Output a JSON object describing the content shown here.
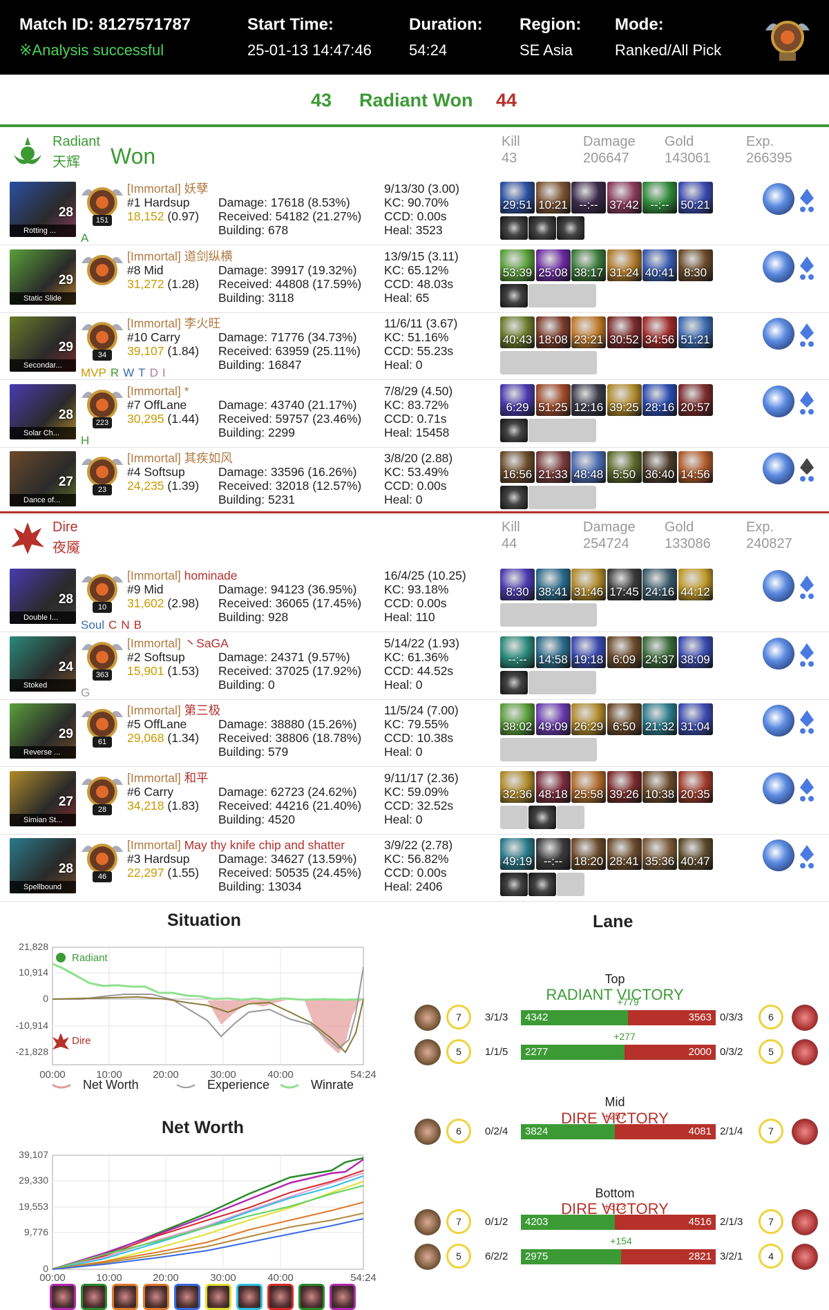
{
  "header": {
    "match_label": "Match ID: 8127571787",
    "status": "※Analysis successful",
    "start_label": "Start Time:",
    "start_value": "25-01-13 14:47:46",
    "duration_label": "Duration:",
    "duration_value": "54:24",
    "region_label": "Region:",
    "region_value": "SE Asia",
    "mode_label": "Mode:",
    "mode_value": "Ranked/All Pick"
  },
  "score": {
    "radiant_kills": "43",
    "result": "Radiant Won",
    "dire_kills": "44"
  },
  "stat_labels": {
    "kill": "Kill",
    "damage": "Damage",
    "gold": "Gold",
    "exp": "Exp."
  },
  "radiant": {
    "name": "Radiant",
    "name_cn": "天辉",
    "won": "Won",
    "kill": "43",
    "damage": "206647",
    "gold": "143061",
    "exp": "266395",
    "players": [
      {
        "level": "28",
        "facet": "Rotting ...",
        "rank_num": "151",
        "tags": [
          "A"
        ],
        "rank": "[Immortal] ",
        "name": "妖孽",
        "pos": "#1 Hardsup",
        "nw": "18,152",
        "nwr": " (0.97)",
        "dmg": "Damage: 17618 (8.53%)",
        "recv": "Received: 54182 (21.27%)",
        "bld": "Building: 678",
        "kda": "9/13/30 (3.00)",
        "kc": "KC: 90.70%",
        "ccd": "CCD: 0.00s",
        "heal": "Heal: 3523",
        "items": [
          "29:51",
          "10:21",
          "--:--",
          "37:42",
          "--:--",
          "50:21"
        ],
        "small": [
          1,
          1,
          1
        ],
        "colors": [
          "#2a4fa0",
          "#7a5230",
          "#3a2a4a",
          "#8a3a5a",
          "#2f8a3a",
          "#3a4ab0"
        ]
      },
      {
        "level": "29",
        "facet": "Static Slide",
        "rank_num": "",
        "tags": [],
        "rank": "[Immortal] ",
        "name": "道剑纵横",
        "pos": "#8 Mid",
        "nw": "31,272",
        "nwr": " (1.28)",
        "dmg": "Damage: 39917 (19.32%)",
        "recv": "Received: 44808 (17.59%)",
        "bld": "Building: 3118",
        "kda": "13/9/15 (3.11)",
        "kc": "KC: 65.12%",
        "ccd": "CCD: 48.03s",
        "heal": "Heal: 65",
        "items": [
          "53:39",
          "25:08",
          "38:17",
          "31:24",
          "40:41",
          "8:30"
        ],
        "small": [
          1,
          0,
          0
        ],
        "colors": [
          "#5aa03a",
          "#6a2aa0",
          "#3a7a3a",
          "#b07a2a",
          "#3a5ab0",
          "#6a4a2a"
        ]
      },
      {
        "level": "29",
        "facet": "Secondar...",
        "rank_num": "34",
        "tags": [
          "MVP",
          "R",
          "W",
          "T",
          "D",
          "I"
        ],
        "rank": "[Immortal] ",
        "name": "李火旺",
        "pos": "#10 Carry",
        "nw": "39,107",
        "nwr": " (1.84)",
        "dmg": "Damage: 71776 (34.73%)",
        "recv": "Received: 63959 (25.11%)",
        "bld": "Building: 16847",
        "kda": "11/6/11 (3.67)",
        "kc": "KC: 51.16%",
        "ccd": "CCD: 55.23s",
        "heal": "Heal: 0",
        "items": [
          "40:43",
          "18:08",
          "23:21",
          "30:52",
          "34:56",
          "51:21"
        ],
        "small": [
          0,
          0,
          0
        ],
        "colors": [
          "#6a7a2a",
          "#7a3a2a",
          "#c07a2a",
          "#7a2a2a",
          "#a02a2a",
          "#3a6ab0"
        ]
      },
      {
        "level": "28",
        "facet": "Solar Ch...",
        "rank_num": "223",
        "tags": [
          "H"
        ],
        "rank": "[Immortal] ",
        "name": "*",
        "pos": "#7 OffLane",
        "nw": "30,295",
        "nwr": " (1.44)",
        "dmg": "Damage: 43740 (21.17%)",
        "recv": "Received: 59757 (23.46%)",
        "bld": "Building: 2299",
        "kda": "7/8/29 (4.50)",
        "kc": "KC: 83.72%",
        "ccd": "CCD: 0.71s",
        "heal": "Heal: 15458",
        "items": [
          "6:29",
          "51:25",
          "12:16",
          "39:25",
          "28:16",
          "20:57"
        ],
        "small": [
          1,
          0,
          0
        ],
        "colors": [
          "#4a3ab0",
          "#a04a2a",
          "#3a3a4a",
          "#b08a2a",
          "#2a4ab0",
          "#7a2a2a"
        ]
      },
      {
        "level": "27",
        "facet": "Dance of...",
        "rank_num": "23",
        "tags": [],
        "rank": "[Immortal] ",
        "name": "其疾如风",
        "pos": "#4 Softsup",
        "nw": "24,235",
        "nwr": " (1.39)",
        "dmg": "Damage: 33596 (16.26%)",
        "recv": "Received: 32018 (12.57%)",
        "bld": "Building: 5231",
        "kda": "3/8/20 (2.88)",
        "kc": "KC: 53.49%",
        "ccd": "CCD: 0.00s",
        "heal": "Heal: 0",
        "items": [
          "16:56",
          "21:33",
          "48:48",
          "5:50",
          "36:40",
          "14:56"
        ],
        "small": [
          1,
          0,
          0
        ],
        "colors": [
          "#6a4a2a",
          "#7a3a3a",
          "#4a6ab0",
          "#5a6a2a",
          "#4a3a2a",
          "#b05a2a"
        ]
      }
    ]
  },
  "dire": {
    "name": "Dire",
    "name_cn": "夜魇",
    "kill": "44",
    "damage": "254724",
    "gold": "133086",
    "exp": "240827",
    "players": [
      {
        "level": "28",
        "facet": "Double I...",
        "rank_num": "10",
        "tags": [
          "Soul",
          "C",
          "N",
          "B"
        ],
        "rank": "[Immortal] ",
        "name": "hominade",
        "pos": "#9 Mid",
        "nw": "31,602",
        "nwr": " (2.98)",
        "dmg": "Damage: 94123 (36.95%)",
        "recv": "Received: 36065 (17.45%)",
        "bld": "Building: 928",
        "kda": "16/4/25 (10.25)",
        "kc": "KC: 93.18%",
        "ccd": "CCD: 0.00s",
        "heal": "Heal: 110",
        "items": [
          "8:30",
          "38:41",
          "31:46",
          "17:45",
          "24:16",
          "44:12"
        ],
        "small": [
          0,
          0,
          0
        ],
        "colors": [
          "#4a3ab0",
          "#2a6a8a",
          "#b08a2a",
          "#3a3a3a",
          "#3a5a6a",
          "#c09a2a"
        ]
      },
      {
        "level": "24",
        "facet": "Stoked",
        "rank_num": "363",
        "tags": [
          "G"
        ],
        "rank": "[Immortal] ",
        "name": "丶SaGA",
        "pos": "#2 Softsup",
        "nw": "15,901",
        "nwr": " (1.53)",
        "dmg": "Damage: 24371 (9.57%)",
        "recv": "Received: 37025 (17.92%)",
        "bld": "Building: 0",
        "kda": "5/14/22 (1.93)",
        "kc": "KC: 61.36%",
        "ccd": "CCD: 44.52s",
        "heal": "Heal: 0",
        "items": [
          "--:--",
          "14:58",
          "19:18",
          "6:09",
          "24:37",
          "38:09"
        ],
        "small": [
          1,
          0,
          0
        ],
        "colors": [
          "#2a8a7a",
          "#2a6a8a",
          "#3a4ab0",
          "#6a4a2a",
          "#3a6a3a",
          "#3a4ab0"
        ]
      },
      {
        "level": "29",
        "facet": "Reverse ...",
        "rank_num": "61",
        "tags": [],
        "rank": "[Immortal] ",
        "name": "第三极",
        "pos": "#5 OffLane",
        "nw": "29,068",
        "nwr": " (1.34)",
        "dmg": "Damage: 38880 (15.26%)",
        "recv": "Received: 38806 (18.78%)",
        "bld": "Building: 579",
        "kda": "11/5/24 (7.00)",
        "kc": "KC: 79.55%",
        "ccd": "CCD: 10.38s",
        "heal": "Heal: 0",
        "items": [
          "38:02",
          "49:09",
          "26:29",
          "6:50",
          "21:32",
          "31:04"
        ],
        "small": [
          0,
          0,
          0
        ],
        "colors": [
          "#5aa03a",
          "#6a3ab0",
          "#b08a2a",
          "#6a4a2a",
          "#2a7a8a",
          "#3a4ab0"
        ]
      },
      {
        "level": "27",
        "facet": "Simian St...",
        "rank_num": "28",
        "tags": [],
        "rank": "[Immortal] ",
        "name": "和平",
        "pos": "#6 Carry",
        "nw": "34,218",
        "nwr": " (1.83)",
        "dmg": "Damage: 62723 (24.62%)",
        "recv": "Received: 44216 (21.40%)",
        "bld": "Building: 4520",
        "kda": "9/11/17 (2.36)",
        "kc": "KC: 59.09%",
        "ccd": "CCD: 32.52s",
        "heal": "Heal: 0",
        "items": [
          "32:36",
          "48:18",
          "25:58",
          "39:26",
          "10:38",
          "20:35"
        ],
        "small": [
          0,
          1,
          0
        ],
        "colors": [
          "#b08a2a",
          "#7a2a3a",
          "#b06a2a",
          "#7a2a2a",
          "#6a4a2a",
          "#a03a2a"
        ]
      },
      {
        "level": "28",
        "facet": "Spellbound",
        "rank_num": "46",
        "tags": [],
        "rank": "[Immortal] ",
        "name": "May thy knife chip and shatter",
        "pos": "#3 Hardsup",
        "nw": "22,297",
        "nwr": " (1.55)",
        "dmg": "Damage: 34627 (13.59%)",
        "recv": "Received: 50535 (24.45%)",
        "bld": "Building: 13034",
        "kda": "3/9/22 (2.78)",
        "kc": "KC: 56.82%",
        "ccd": "CCD: 0.00s",
        "heal": "Heal: 2406",
        "items": [
          "49:19",
          "--:--",
          "18:20",
          "28:41",
          "35:36",
          "40:47"
        ],
        "small": [
          1,
          1,
          0
        ],
        "colors": [
          "#2a7a8a",
          "#3a3a3a",
          "#6a4a2a",
          "#6a4a2a",
          "#7a5a3a",
          "#5a4a2a"
        ]
      }
    ]
  },
  "situation": {
    "title": "Situation",
    "y_ticks": [
      "21,828",
      "10,914",
      "0",
      "-10,914",
      "-21,828"
    ],
    "x_ticks": [
      "00:00",
      "10:00",
      "20:00",
      "30:00",
      "40:00",
      "54:24"
    ],
    "radiant_label": "Radiant",
    "dire_label": "Dire",
    "legend": [
      "Net Worth",
      "Experience",
      "Winrate"
    ]
  },
  "networth": {
    "title": "Net Worth",
    "y_ticks": [
      "39,107",
      "29,330",
      "19,553",
      "9,776",
      "0"
    ],
    "x_ticks": [
      "00:00",
      "10:00",
      "20:00",
      "30:00",
      "40:00",
      "54:24"
    ]
  },
  "lane": {
    "title": "Lane",
    "top": {
      "name": "Top",
      "result": "RADIANT VICTORY",
      "rows": [
        {
          "lvl_l": "7",
          "kda_l": "3/1/3",
          "g": "4342",
          "r": "3563",
          "diff": "+779",
          "kda_r": "0/3/3",
          "lvl_r": "6"
        },
        {
          "lvl_l": "5",
          "kda_l": "1/1/5",
          "g": "2277",
          "r": "2000",
          "diff": "+277",
          "kda_r": "0/3/2",
          "lvl_r": "5"
        }
      ]
    },
    "mid": {
      "name": "Mid",
      "result": "DIRE VICTORY",
      "rows": [
        {
          "lvl_l": "6",
          "kda_l": "0/2/4",
          "g": "3824",
          "r": "4081",
          "diff": "+257",
          "kda_r": "2/1/4",
          "lvl_r": "7"
        }
      ]
    },
    "bottom": {
      "name": "Bottom",
      "result": "DIRE VICTORY",
      "rows": [
        {
          "lvl_l": "7",
          "kda_l": "0/1/2",
          "g": "4203",
          "r": "4516",
          "diff": "+313",
          "kda_r": "2/1/3",
          "lvl_r": "7"
        },
        {
          "lvl_l": "5",
          "kda_l": "6/2/2",
          "g": "2975",
          "r": "2821",
          "diff": "+154",
          "kda_r": "3/2/1",
          "lvl_r": "4"
        }
      ]
    }
  },
  "colors": {
    "radiant": "#3c9a35",
    "dire": "#b5312a",
    "gold": "#c99a00",
    "rank": "#b07a42"
  }
}
